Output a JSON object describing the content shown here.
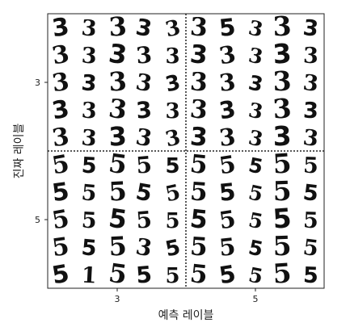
{
  "chart_data": {
    "type": "table",
    "x_tick_labels": [
      "3",
      "5"
    ],
    "y_tick_labels": [
      "3",
      "5"
    ],
    "xlabel": "예측 레이블",
    "ylabel": "진짜 레이블",
    "grid": {
      "rows": 10,
      "cols": 10,
      "quadrants": [
        {
          "true_label": "3",
          "predicted_label": "3",
          "digits": [
            [
              "3",
              "3",
              "3",
              "3",
              "3"
            ],
            [
              "3",
              "3",
              "3",
              "3",
              "3"
            ],
            [
              "3",
              "3",
              "3",
              "3",
              "3"
            ],
            [
              "3",
              "3",
              "3",
              "3",
              "3"
            ],
            [
              "3",
              "3",
              "3",
              "3",
              "3"
            ]
          ]
        },
        {
          "true_label": "3",
          "predicted_label": "5",
          "digits": [
            [
              "3",
              "5",
              "3",
              "3",
              "3"
            ],
            [
              "3",
              "3",
              "3",
              "3",
              "3"
            ],
            [
              "3",
              "3",
              "3",
              "3",
              "3"
            ],
            [
              "3",
              "3",
              "3",
              "3",
              "3"
            ],
            [
              "3",
              "3",
              "3",
              "3",
              "3"
            ]
          ]
        },
        {
          "true_label": "5",
          "predicted_label": "3",
          "digits": [
            [
              "5",
              "5",
              "5",
              "5",
              "5"
            ],
            [
              "5",
              "5",
              "5",
              "5",
              "5"
            ],
            [
              "5",
              "5",
              "5",
              "5",
              "5"
            ],
            [
              "5",
              "5",
              "5",
              "3",
              "5"
            ],
            [
              "5",
              "1",
              "5",
              "5",
              "5"
            ]
          ]
        },
        {
          "true_label": "5",
          "predicted_label": "5",
          "digits": [
            [
              "5",
              "5",
              "5",
              "5",
              "5"
            ],
            [
              "5",
              "5",
              "5",
              "5",
              "5"
            ],
            [
              "5",
              "5",
              "5",
              "5",
              "5"
            ],
            [
              "5",
              "5",
              "5",
              "5",
              "5"
            ],
            [
              "5",
              "5",
              "5",
              "5",
              "5"
            ]
          ]
        }
      ]
    }
  }
}
